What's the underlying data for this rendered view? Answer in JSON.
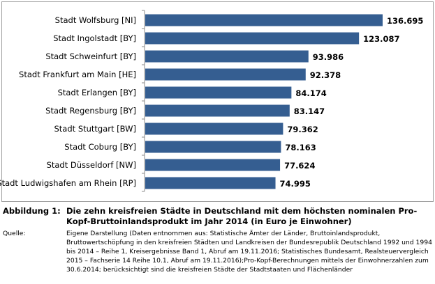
{
  "chart_data": {
    "type": "bar",
    "orientation": "horizontal",
    "categories": [
      "Stadt Wolfsburg [NI]",
      "Stadt Ingolstadt  [BY]",
      "Stadt Schweinfurt [BY]",
      "Stadt Frankfurt am Main [HE]",
      "Stadt Erlangen [BY]",
      "Stadt Regensburg [BY]",
      "Stadt Stuttgart  [BW]",
      "Stadt Coburg [BY]",
      "Stadt Düsseldorf [NW]",
      "Stadt Ludwigshafen am Rhein [RP]"
    ],
    "values": [
      136695,
      123087,
      93986,
      92378,
      84174,
      83147,
      79362,
      78163,
      77624,
      74995
    ],
    "value_labels": [
      "136.695",
      "123.087",
      "93.986",
      "92.378",
      "84.174",
      "83.147",
      "79.362",
      "78.163",
      "77.624",
      "74.995"
    ],
    "xlim": [
      0,
      140000
    ],
    "grid": false,
    "legend": "none",
    "bar_color": "#355E91"
  },
  "caption": {
    "label": "Abbildung 1:",
    "title": "Die zehn kreisfreien Städte in Deutschland mit dem höchsten nominalen Pro-Kopf-Bruttoinlandsprodukt im Jahr 2014 (in Euro je Einwohner)",
    "source_label": "Quelle:",
    "source": "Eigene Darstellung (Daten entnommen aus: Statistische Ämter der Länder, Bruttoinlandsprodukt, Bruttowertschöpfung in den kreisfreien Städten und Landkreisen der Bundesrepublik Deutschland 1992 und 1994 bis 2014 – Reihe 1, Kreisergebnisse Band 1, Abruf am 19.11.2016; Statistisches Bundesamt, Realsteuervergleich 2015 – Fachserie 14 Reihe 10.1, Abruf am 19.11.2016);Pro-Kopf-Berechnungen mittels der Einwohnerzahlen zum 30.6.2014; berücksichtigt sind die kreisfreien Städte der Stadtstaaten und Flächenländer"
  }
}
